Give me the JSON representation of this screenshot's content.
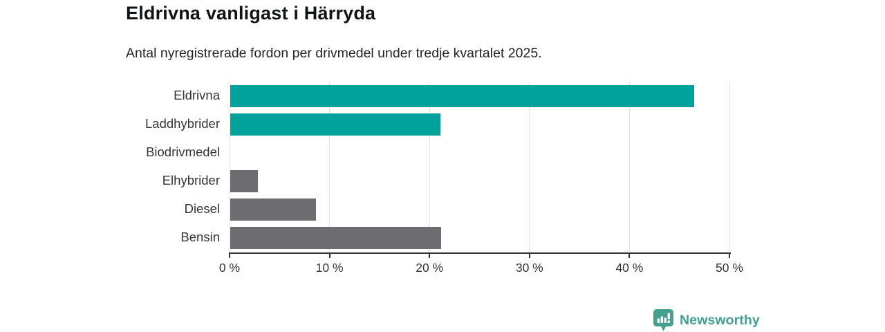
{
  "title": "Eldrivna vanligast i Härryda",
  "subtitle": "Antal nyregistrerade fordon per drivmedel under tredje kvartalet 2025.",
  "branding": {
    "logo_text": "Newsworthy",
    "logo_icon": "bar-chart-pin-icon",
    "logo_color": "#44a18f"
  },
  "colors": {
    "highlight": "#00a29b",
    "muted": "#6c6c71",
    "grid": "#e4e4e4",
    "axis": "#333639",
    "title_text": "#111417",
    "body_text": "#333639"
  },
  "chart_data": {
    "type": "bar",
    "orientation": "horizontal",
    "title": "Eldrivna vanligast i Härryda",
    "subtitle": "Antal nyregistrerade fordon per drivmedel under tredje kvartalet 2025.",
    "categories": [
      "Eldrivna",
      "Laddhybrider",
      "Biodrivmedel",
      "Elhybrider",
      "Diesel",
      "Bensin"
    ],
    "values": [
      46.4,
      21.0,
      0,
      2.8,
      8.6,
      21.1
    ],
    "unit": "%",
    "bar_colors": [
      "#00a29b",
      "#00a29b",
      "#00a29b",
      "#6c6c71",
      "#6c6c71",
      "#6c6c71"
    ],
    "xlim": [
      0,
      50
    ],
    "x_ticks": [
      0,
      10,
      20,
      30,
      40,
      50
    ],
    "x_tick_labels": [
      "0 %",
      "10 %",
      "20 %",
      "30 %",
      "40 %",
      "50 %"
    ],
    "grid": true,
    "legend": false
  }
}
